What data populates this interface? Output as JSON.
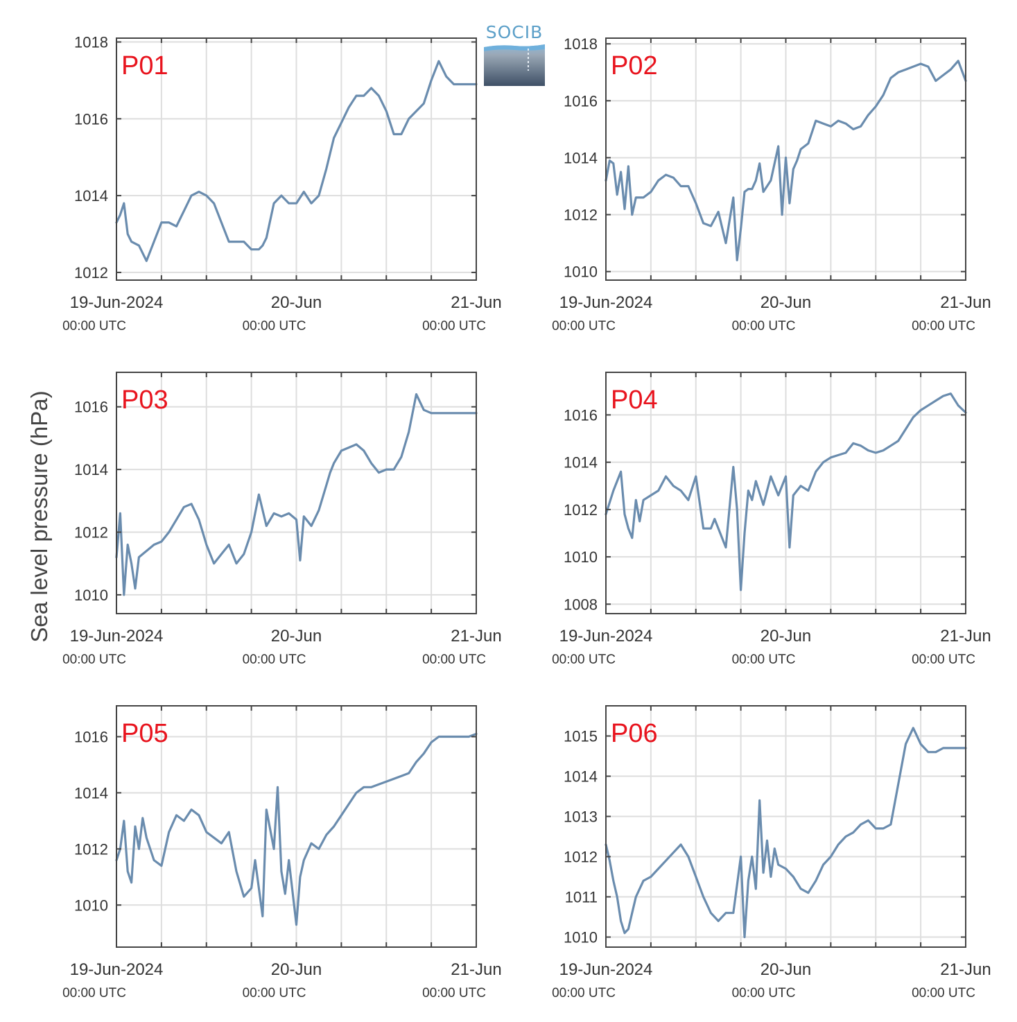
{
  "figure": {
    "ylabel": "Sea level pressure (hPa)",
    "logo_text": "SOCIB",
    "line_color": "#6a8cae",
    "title_color": "#e8141e"
  },
  "chart_data": [
    {
      "type": "line",
      "title": "P01",
      "x_tick_labels": [
        {
          "date": "19-Jun-2024",
          "time": "00:00 UTC"
        },
        {
          "date": "20-Jun",
          "time": "00:00 UTC"
        },
        {
          "date": "21-Jun",
          "time": "00:00 UTC"
        }
      ],
      "xlim_hours": [
        0,
        48
      ],
      "ylim": [
        1011.8,
        1018.1
      ],
      "yticks": [
        1012,
        1014,
        1016,
        1018
      ],
      "grid": true,
      "series": [
        {
          "x": [
            0,
            0.5,
            1,
            1.5,
            2,
            3,
            4,
            5,
            6,
            7,
            8,
            9,
            10,
            11,
            12,
            13,
            14,
            15,
            16,
            17,
            18,
            19,
            19.5,
            20,
            21,
            22,
            23,
            24,
            25,
            26,
            27,
            28,
            29,
            30,
            31,
            32,
            33,
            34,
            35,
            36,
            37,
            38,
            39,
            40,
            41,
            42,
            43,
            44,
            45,
            46,
            47,
            48
          ],
          "y": [
            1013.3,
            1013.5,
            1013.8,
            1013.0,
            1012.8,
            1012.7,
            1012.3,
            1012.8,
            1013.3,
            1013.3,
            1013.2,
            1013.6,
            1014.0,
            1014.1,
            1014.0,
            1013.8,
            1013.3,
            1012.8,
            1012.8,
            1012.8,
            1012.6,
            1012.6,
            1012.7,
            1012.9,
            1013.8,
            1014.0,
            1013.8,
            1013.8,
            1014.1,
            1013.8,
            1014.0,
            1014.7,
            1015.5,
            1015.9,
            1016.3,
            1016.6,
            1016.6,
            1016.8,
            1016.6,
            1016.2,
            1015.6,
            1015.6,
            1016.0,
            1016.2,
            1016.4,
            1017.0,
            1017.5,
            1017.1,
            1016.9,
            1016.9,
            1016.9,
            1016.9
          ]
        }
      ]
    },
    {
      "type": "line",
      "title": "P02",
      "x_tick_labels": [
        {
          "date": "19-Jun-2024",
          "time": "00:00 UTC"
        },
        {
          "date": "20-Jun",
          "time": "00:00 UTC"
        },
        {
          "date": "21-Jun",
          "time": "00:00 UTC"
        }
      ],
      "xlim_hours": [
        0,
        48
      ],
      "ylim": [
        1009.7,
        1018.2
      ],
      "yticks": [
        1010,
        1012,
        1014,
        1016,
        1018
      ],
      "grid": true,
      "series": [
        {
          "x": [
            0,
            0.5,
            1,
            1.5,
            2,
            2.5,
            3,
            3.5,
            4,
            5,
            6,
            7,
            8,
            9,
            10,
            11,
            12,
            13,
            14,
            15,
            16,
            17,
            17.5,
            18,
            18.5,
            19,
            19.5,
            20,
            20.5,
            21,
            22,
            23,
            23.5,
            24,
            24.5,
            25,
            25.5,
            26,
            26.5,
            27,
            28,
            29,
            30,
            31,
            32,
            33,
            34,
            35,
            36,
            37,
            38,
            39,
            40,
            41,
            42,
            43,
            44,
            45,
            46,
            47,
            48
          ],
          "y": [
            1013.2,
            1013.9,
            1013.8,
            1012.7,
            1013.5,
            1012.2,
            1013.7,
            1012.0,
            1012.6,
            1012.6,
            1012.8,
            1013.2,
            1013.4,
            1013.3,
            1013.0,
            1013.0,
            1012.4,
            1011.7,
            1011.6,
            1012.1,
            1011.0,
            1012.6,
            1010.4,
            1011.5,
            1012.8,
            1012.9,
            1012.9,
            1013.2,
            1013.8,
            1012.8,
            1013.2,
            1014.4,
            1012.0,
            1014.0,
            1012.4,
            1013.6,
            1013.9,
            1014.3,
            1014.4,
            1014.5,
            1015.3,
            1015.2,
            1015.1,
            1015.3,
            1015.2,
            1015.0,
            1015.1,
            1015.5,
            1015.8,
            1016.2,
            1016.8,
            1017.0,
            1017.1,
            1017.2,
            1017.3,
            1017.2,
            1016.7,
            1016.9,
            1017.1,
            1017.4,
            1016.7
          ]
        }
      ]
    },
    {
      "type": "line",
      "title": "P03",
      "x_tick_labels": [
        {
          "date": "19-Jun-2024",
          "time": "00:00 UTC"
        },
        {
          "date": "20-Jun",
          "time": "00:00 UTC"
        },
        {
          "date": "21-Jun",
          "time": "00:00 UTC"
        }
      ],
      "xlim_hours": [
        0,
        48
      ],
      "ylim": [
        1009.4,
        1017.1
      ],
      "yticks": [
        1010,
        1012,
        1014,
        1016
      ],
      "grid": true,
      "series": [
        {
          "x": [
            0,
            0.5,
            1,
            1.5,
            2,
            2.5,
            3,
            3.5,
            4,
            5,
            6,
            7,
            8,
            9,
            10,
            11,
            12,
            13,
            14,
            15,
            16,
            17,
            18,
            19,
            20,
            21,
            22,
            23,
            24,
            24.5,
            25,
            26,
            27,
            28,
            28.5,
            29,
            30,
            31,
            32,
            33,
            34,
            35,
            36,
            37,
            38,
            39,
            40,
            41,
            42,
            43,
            44,
            45,
            46,
            47,
            48
          ],
          "y": [
            1011.2,
            1012.6,
            1010.0,
            1011.6,
            1011.0,
            1010.2,
            1011.2,
            1011.3,
            1011.4,
            1011.6,
            1011.7,
            1012.0,
            1012.4,
            1012.8,
            1012.9,
            1012.4,
            1011.6,
            1011.0,
            1011.3,
            1011.6,
            1011.0,
            1011.3,
            1012.0,
            1013.2,
            1012.2,
            1012.6,
            1012.5,
            1012.6,
            1012.4,
            1011.1,
            1012.5,
            1012.2,
            1012.7,
            1013.5,
            1013.9,
            1014.2,
            1014.6,
            1014.7,
            1014.8,
            1014.6,
            1014.2,
            1013.9,
            1014.0,
            1014.0,
            1014.4,
            1015.2,
            1016.4,
            1015.9,
            1015.8,
            1015.8,
            1015.8,
            1015.8,
            1015.8,
            1015.8,
            1015.8
          ]
        }
      ]
    },
    {
      "type": "line",
      "title": "P04",
      "x_tick_labels": [
        {
          "date": "19-Jun-2024",
          "time": "00:00 UTC"
        },
        {
          "date": "20-Jun",
          "time": "00:00 UTC"
        },
        {
          "date": "21-Jun",
          "time": "00:00 UTC"
        }
      ],
      "xlim_hours": [
        0,
        48
      ],
      "ylim": [
        1007.6,
        1017.8
      ],
      "yticks": [
        1008,
        1010,
        1012,
        1014,
        1016
      ],
      "grid": true,
      "series": [
        {
          "x": [
            0,
            1,
            2,
            2.5,
            3,
            3.5,
            4,
            4.5,
            5,
            6,
            7,
            8,
            9,
            10,
            11,
            12,
            13,
            14,
            14.5,
            15,
            16,
            17,
            17.5,
            18,
            18.5,
            19,
            19.5,
            20,
            21,
            22,
            23,
            24,
            24.5,
            25,
            26,
            27,
            28,
            29,
            30,
            31,
            32,
            33,
            34,
            35,
            36,
            37,
            38,
            39,
            40,
            41,
            42,
            43,
            44,
            45,
            46,
            47,
            48
          ],
          "y": [
            1011.8,
            1012.8,
            1013.6,
            1011.8,
            1011.2,
            1010.8,
            1012.4,
            1011.5,
            1012.4,
            1012.6,
            1012.8,
            1013.4,
            1013.0,
            1012.8,
            1012.4,
            1013.4,
            1011.2,
            1011.2,
            1011.6,
            1011.2,
            1010.4,
            1013.8,
            1012.0,
            1008.6,
            1011.0,
            1012.8,
            1012.4,
            1013.2,
            1012.2,
            1013.4,
            1012.6,
            1013.4,
            1010.4,
            1012.6,
            1013.0,
            1012.8,
            1013.6,
            1014.0,
            1014.2,
            1014.3,
            1014.4,
            1014.8,
            1014.7,
            1014.5,
            1014.4,
            1014.5,
            1014.7,
            1014.9,
            1015.4,
            1015.9,
            1016.2,
            1016.4,
            1016.6,
            1016.8,
            1016.9,
            1016.4,
            1016.1
          ]
        }
      ]
    },
    {
      "type": "line",
      "title": "P05",
      "x_tick_labels": [
        {
          "date": "19-Jun-2024",
          "time": "00:00 UTC"
        },
        {
          "date": "20-Jun",
          "time": "00:00 UTC"
        },
        {
          "date": "21-Jun",
          "time": "00:00 UTC"
        }
      ],
      "xlim_hours": [
        0,
        48
      ],
      "ylim": [
        1008.5,
        1017.1
      ],
      "yticks": [
        1010,
        1012,
        1014,
        1016
      ],
      "grid": true,
      "series": [
        {
          "x": [
            0,
            0.5,
            1,
            1.5,
            2,
            2.5,
            3,
            3.5,
            4,
            5,
            6,
            7,
            8,
            9,
            10,
            11,
            12,
            13,
            14,
            15,
            16,
            17,
            18,
            18.5,
            19,
            19.5,
            20,
            21,
            21.5,
            22,
            22.5,
            23,
            24,
            24.5,
            25,
            26,
            27,
            28,
            29,
            30,
            31,
            32,
            33,
            34,
            35,
            36,
            37,
            38,
            39,
            40,
            41,
            42,
            43,
            44,
            45,
            46,
            47,
            48
          ],
          "y": [
            1011.6,
            1012.0,
            1013.0,
            1011.2,
            1010.8,
            1012.8,
            1012.0,
            1013.1,
            1012.4,
            1011.6,
            1011.4,
            1012.6,
            1013.2,
            1013.0,
            1013.4,
            1013.2,
            1012.6,
            1012.4,
            1012.2,
            1012.6,
            1011.2,
            1010.3,
            1010.6,
            1011.6,
            1010.6,
            1009.6,
            1013.4,
            1012.0,
            1014.2,
            1011.2,
            1010.4,
            1011.6,
            1009.3,
            1011.0,
            1011.6,
            1012.2,
            1012.0,
            1012.5,
            1012.8,
            1013.2,
            1013.6,
            1014.0,
            1014.2,
            1014.2,
            1014.3,
            1014.4,
            1014.5,
            1014.6,
            1014.7,
            1015.1,
            1015.4,
            1015.8,
            1016.0,
            1016.0,
            1016.0,
            1016.0,
            1016.0,
            1016.1
          ]
        }
      ]
    },
    {
      "type": "line",
      "title": "P06",
      "x_tick_labels": [
        {
          "date": "19-Jun-2024",
          "time": "00:00 UTC"
        },
        {
          "date": "20-Jun",
          "time": "00:00 UTC"
        },
        {
          "date": "21-Jun",
          "time": "00:00 UTC"
        }
      ],
      "xlim_hours": [
        0,
        48
      ],
      "ylim": [
        9.75,
        15.75
      ],
      "y_offset": 1000,
      "yticks": [
        1010,
        1011,
        1012,
        1013,
        1014,
        1015
      ],
      "grid": true,
      "series": [
        {
          "x": [
            0,
            0.5,
            1,
            1.5,
            2,
            2.5,
            3,
            3.5,
            4,
            5,
            6,
            7,
            8,
            9,
            10,
            11,
            12,
            13,
            14,
            15,
            16,
            17,
            18,
            18.5,
            19,
            19.5,
            20,
            20.5,
            21,
            21.5,
            22,
            22.5,
            23,
            24,
            25,
            26,
            27,
            28,
            29,
            30,
            31,
            32,
            33,
            34,
            35,
            36,
            37,
            38,
            39,
            40,
            41,
            42,
            43,
            44,
            45,
            46,
            47,
            48
          ],
          "y": [
            12.3,
            11.9,
            11.4,
            11.0,
            10.4,
            10.1,
            10.2,
            10.6,
            11.0,
            11.4,
            11.5,
            11.7,
            11.9,
            12.1,
            12.3,
            12.0,
            11.5,
            11.0,
            10.6,
            10.4,
            10.6,
            10.6,
            12.0,
            10.0,
            11.4,
            12.0,
            11.2,
            13.4,
            11.6,
            12.4,
            11.5,
            12.2,
            11.8,
            11.7,
            11.5,
            11.2,
            11.1,
            11.4,
            11.8,
            12.0,
            12.3,
            12.5,
            12.6,
            12.8,
            12.9,
            12.7,
            12.7,
            12.8,
            13.8,
            14.8,
            15.2,
            14.8,
            14.6,
            14.6,
            14.7,
            14.7,
            14.7,
            14.7
          ]
        }
      ]
    }
  ]
}
